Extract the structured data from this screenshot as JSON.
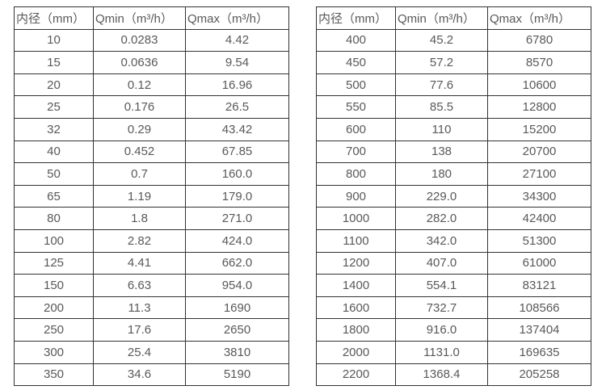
{
  "colors": {
    "background": "#ffffff",
    "border": "#333333",
    "text": "#58595b"
  },
  "tables": [
    {
      "name": "flow-range-table-dn10-dn350",
      "headers": [
        "内径（mm）",
        "Qmin（m³/h）",
        "Qmax（m³/h）"
      ],
      "rows": [
        [
          "10",
          "0.0283",
          "4.42"
        ],
        [
          "15",
          "0.0636",
          "9.54"
        ],
        [
          "20",
          "0.12",
          "16.96"
        ],
        [
          "25",
          "0.176",
          "26.5"
        ],
        [
          "32",
          "0.29",
          "43.42"
        ],
        [
          "40",
          "0.452",
          "67.85"
        ],
        [
          "50",
          "0.7",
          "160.0"
        ],
        [
          "65",
          "1.19",
          "179.0"
        ],
        [
          "80",
          "1.8",
          "271.0"
        ],
        [
          "100",
          "2.82",
          "424.0"
        ],
        [
          "125",
          "4.41",
          "662.0"
        ],
        [
          "150",
          "6.63",
          "954.0"
        ],
        [
          "200",
          "11.3",
          "1690"
        ],
        [
          "250",
          "17.6",
          "2650"
        ],
        [
          "300",
          "25.4",
          "3810"
        ],
        [
          "350",
          "34.6",
          "5190"
        ]
      ]
    },
    {
      "name": "flow-range-table-dn400-dn2200",
      "headers": [
        "内径（mm）",
        "Qmin（m³/h）",
        "Qmax（m³/h）"
      ],
      "rows": [
        [
          "400",
          "45.2",
          "6780"
        ],
        [
          "450",
          "57.2",
          "8570"
        ],
        [
          "500",
          "77.6",
          "10600"
        ],
        [
          "550",
          "85.5",
          "12800"
        ],
        [
          "600",
          "110",
          "15200"
        ],
        [
          "700",
          "138",
          "20700"
        ],
        [
          "800",
          "180",
          "27100"
        ],
        [
          "900",
          "229.0",
          "34300"
        ],
        [
          "1000",
          "282.0",
          "42400"
        ],
        [
          "1100",
          "342.0",
          "51300"
        ],
        [
          "1200",
          "407.0",
          "61000"
        ],
        [
          "1400",
          "554.1",
          "83121"
        ],
        [
          "1600",
          "732.7",
          "108566"
        ],
        [
          "1800",
          "916.0",
          "137404"
        ],
        [
          "2000",
          "1131.0",
          "169635"
        ],
        [
          "2200",
          "1368.4",
          "205258"
        ]
      ]
    }
  ]
}
